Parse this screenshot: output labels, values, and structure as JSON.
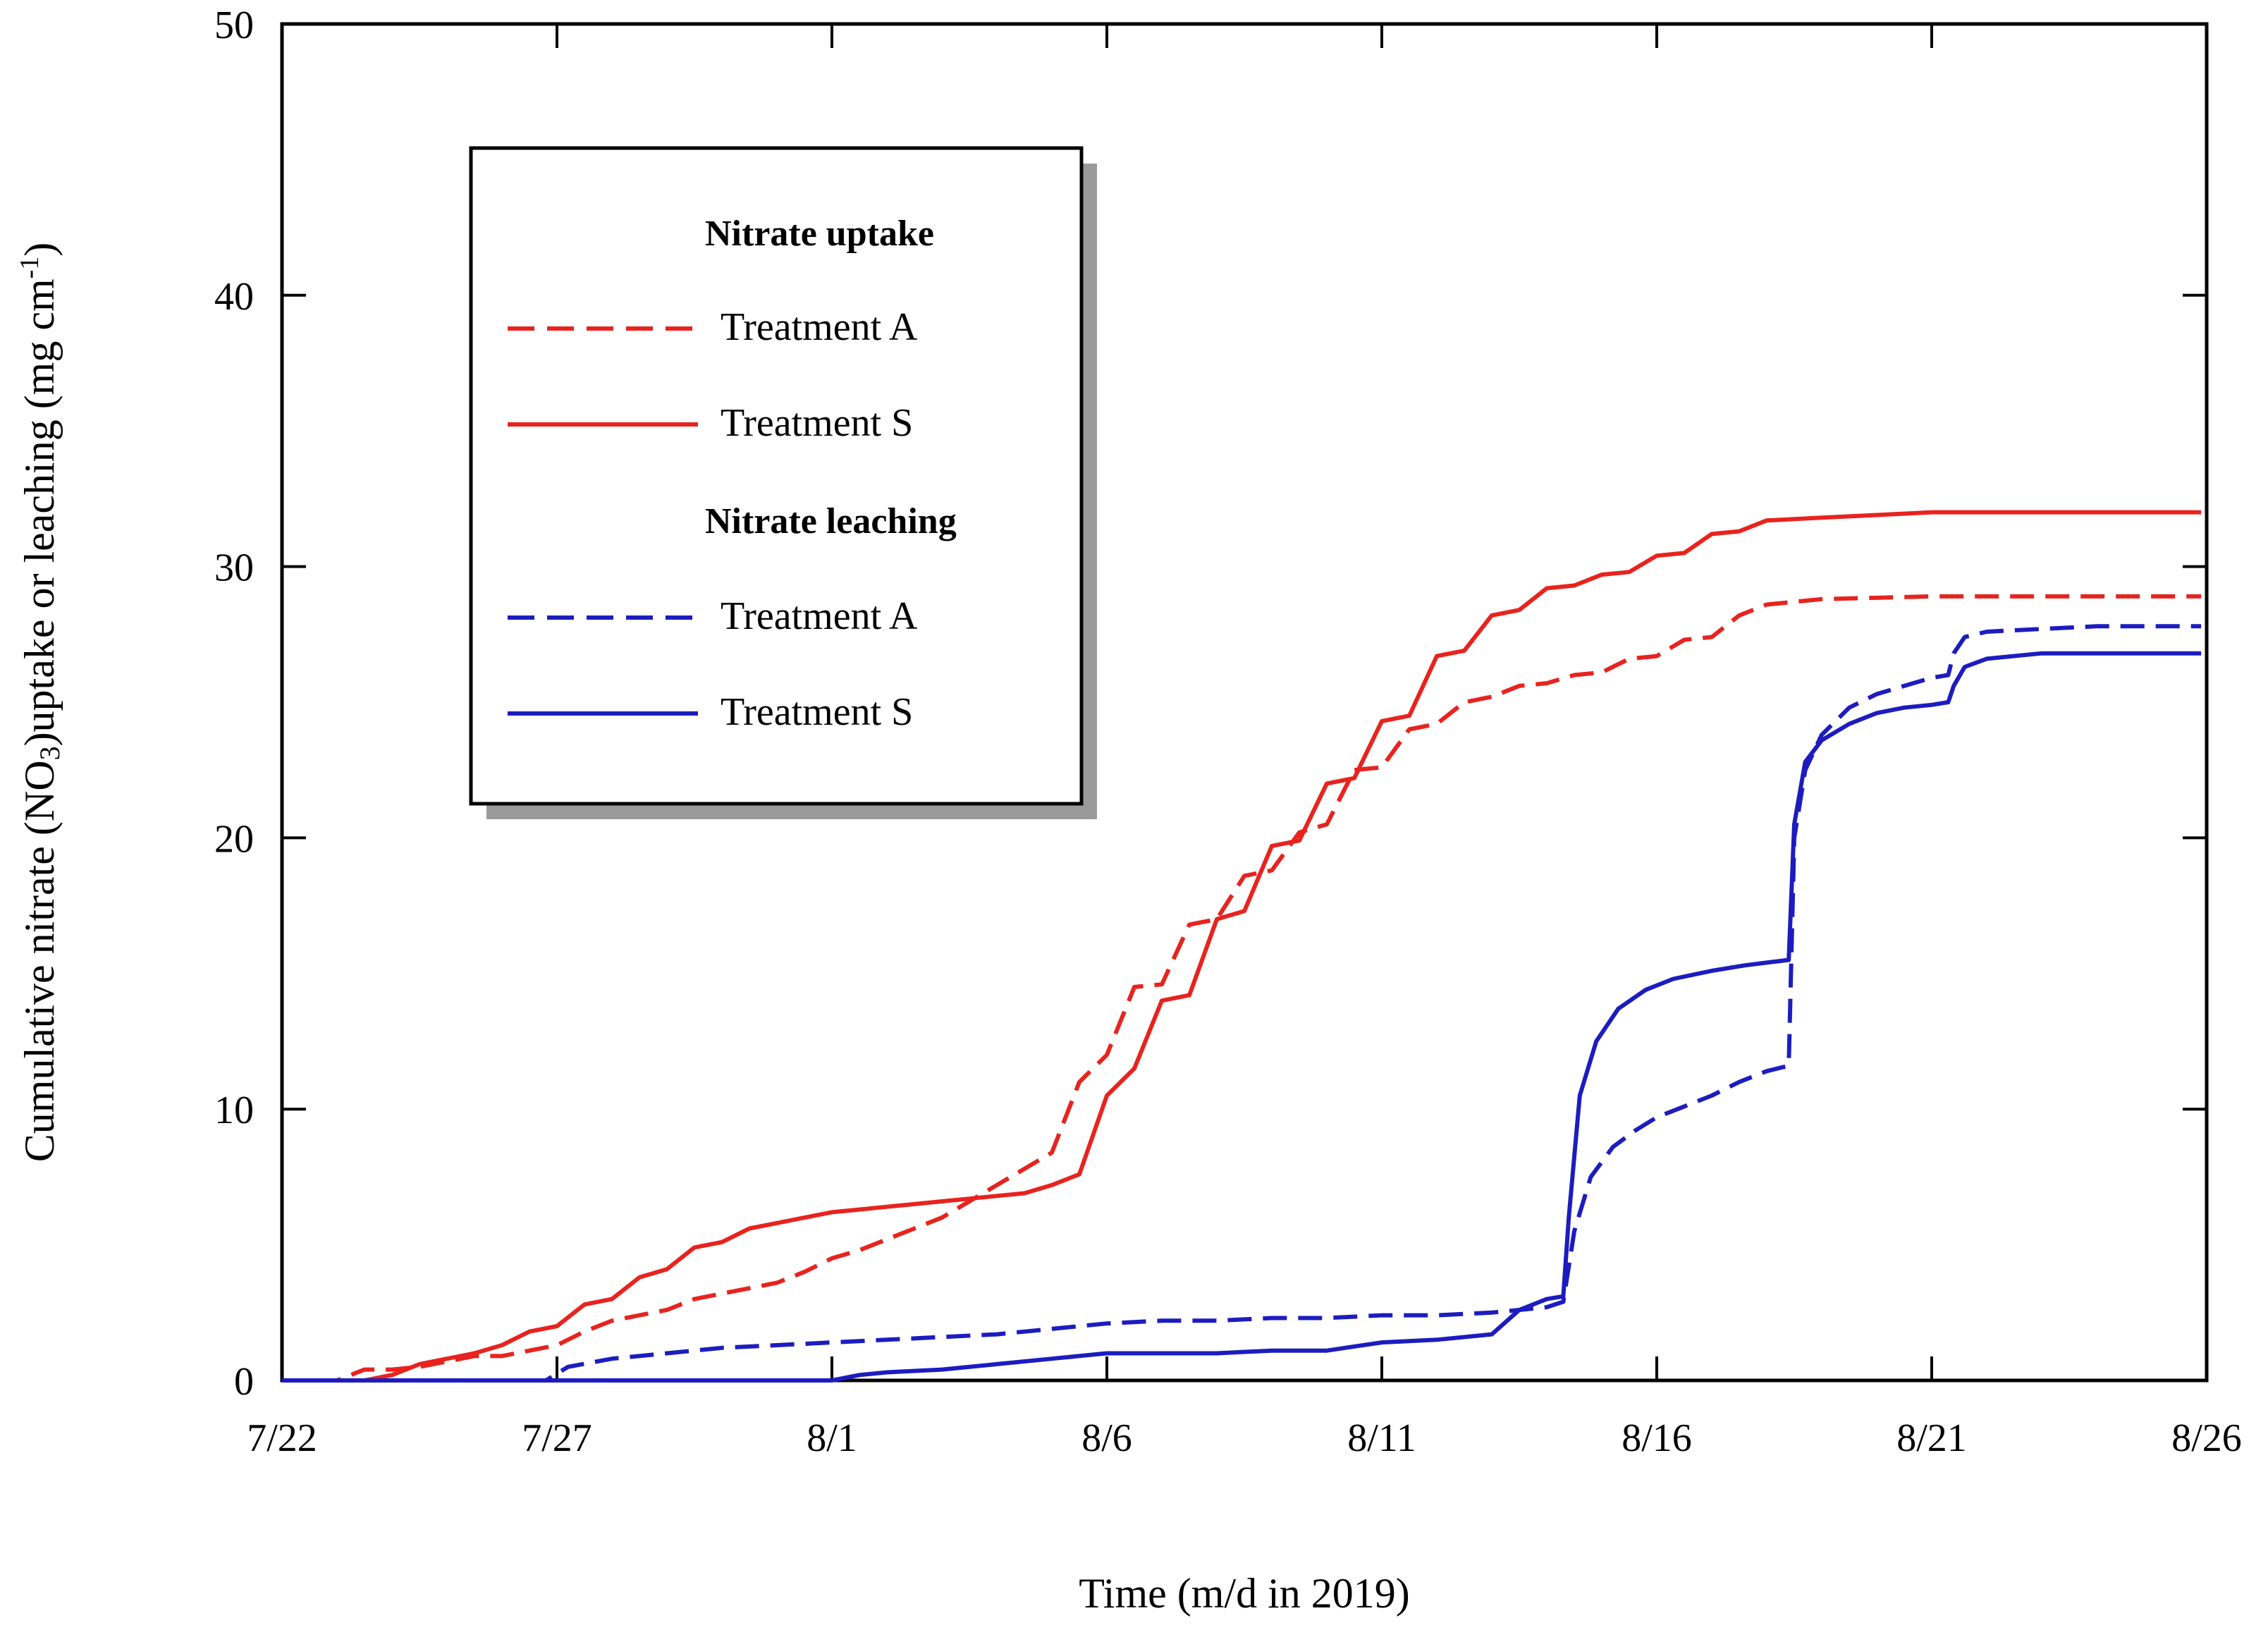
{
  "chart_data": {
    "type": "line",
    "title": "",
    "xlabel": "Time (m/d in 2019)",
    "ylabel_main": "Cumulative nitrate (NO",
    "ylabel_sub": "3",
    "ylabel_rest": ")uptake or leaching  (mg cm",
    "ylabel_sup": "-1",
    "ylabel_close": ")",
    "x_unit": "days since 7/22/2019",
    "xlim": [
      0,
      35
    ],
    "ylim": [
      0,
      50
    ],
    "x_ticks": [
      {
        "value": 0,
        "label": "7/22"
      },
      {
        "value": 5,
        "label": "7/27"
      },
      {
        "value": 10,
        "label": "8/1"
      },
      {
        "value": 15,
        "label": "8/6"
      },
      {
        "value": 20,
        "label": "8/11"
      },
      {
        "value": 25,
        "label": "8/16"
      },
      {
        "value": 30,
        "label": "8/21"
      },
      {
        "value": 35,
        "label": "8/26"
      }
    ],
    "y_ticks": [
      {
        "value": 0,
        "label": "0"
      },
      {
        "value": 10,
        "label": "10"
      },
      {
        "value": 20,
        "label": "20"
      },
      {
        "value": 30,
        "label": "30"
      },
      {
        "value": 40,
        "label": "40"
      },
      {
        "value": 50,
        "label": "50"
      }
    ],
    "legend": {
      "uptake_heading": "Nitrate uptake",
      "leaching_heading": "Nitrate leaching",
      "placement": "upper-left inside plot"
    },
    "series": [
      {
        "name": "Treatment A",
        "group": "Nitrate uptake",
        "color": "#e8231e",
        "dash": true,
        "x": [
          0,
          1,
          1.5,
          2,
          2.5,
          3,
          3.5,
          4,
          4.5,
          5,
          5.5,
          6,
          6.5,
          7,
          7.5,
          8,
          8.5,
          9,
          9.5,
          10,
          10.5,
          11,
          11.5,
          12,
          12.5,
          13,
          13.5,
          14,
          14.5,
          15,
          15.5,
          16,
          16.5,
          17,
          17.5,
          18,
          18.5,
          19,
          19.5,
          20,
          20.5,
          21,
          21.5,
          22,
          22.5,
          23,
          23.5,
          24,
          24.5,
          25,
          25.5,
          26,
          26.5,
          27,
          28,
          29,
          30,
          31,
          32,
          33,
          34,
          34.9
        ],
        "y": [
          0,
          0,
          0.4,
          0.4,
          0.5,
          0.7,
          0.9,
          0.9,
          1.1,
          1.3,
          1.8,
          2.2,
          2.4,
          2.6,
          3.0,
          3.2,
          3.4,
          3.6,
          4.0,
          4.5,
          4.8,
          5.2,
          5.6,
          6.0,
          6.6,
          7.2,
          7.8,
          8.4,
          11.0,
          12.0,
          14.5,
          14.6,
          16.8,
          17.0,
          18.6,
          18.8,
          20.2,
          20.5,
          22.5,
          22.6,
          24.0,
          24.2,
          25.0,
          25.2,
          25.6,
          25.7,
          26.0,
          26.1,
          26.6,
          26.7,
          27.3,
          27.4,
          28.2,
          28.6,
          28.8,
          28.85,
          28.9,
          28.9,
          28.9,
          28.9,
          28.9,
          28.9
        ]
      },
      {
        "name": "Treatment S",
        "group": "Nitrate uptake",
        "color": "#e8231e",
        "dash": false,
        "x": [
          0,
          1.5,
          2,
          2.5,
          3,
          3.5,
          4,
          4.5,
          5,
          5.5,
          6,
          6.5,
          7,
          7.5,
          8,
          8.5,
          9,
          9.5,
          10,
          10.5,
          11,
          11.5,
          12,
          12.5,
          13,
          13.5,
          14,
          14.5,
          15,
          15.5,
          16,
          16.5,
          17,
          17.5,
          18,
          18.5,
          19,
          19.5,
          20,
          20.5,
          21,
          21.5,
          22,
          22.5,
          23,
          23.5,
          24,
          24.5,
          25,
          25.5,
          26,
          26.5,
          27,
          28,
          29,
          30,
          31,
          32,
          33,
          34,
          34.9
        ],
        "y": [
          0,
          0,
          0.2,
          0.6,
          0.8,
          1.0,
          1.3,
          1.8,
          2.0,
          2.8,
          3.0,
          3.8,
          4.1,
          4.9,
          5.1,
          5.6,
          5.8,
          6.0,
          6.2,
          6.3,
          6.4,
          6.5,
          6.6,
          6.7,
          6.8,
          6.9,
          7.2,
          7.6,
          10.5,
          11.5,
          14.0,
          14.2,
          17.0,
          17.3,
          19.7,
          19.9,
          22.0,
          22.2,
          24.3,
          24.5,
          26.7,
          26.9,
          28.2,
          28.4,
          29.2,
          29.3,
          29.7,
          29.8,
          30.4,
          30.5,
          31.2,
          31.3,
          31.7,
          31.8,
          31.9,
          32.0,
          32.0,
          32.0,
          32.0,
          32.0,
          32.0
        ]
      },
      {
        "name": "Treatment A",
        "group": "Nitrate leaching",
        "color": "#1c1cc0",
        "dash": true,
        "x": [
          0,
          4.8,
          5.2,
          6,
          7,
          8,
          9,
          10,
          11,
          12,
          13,
          14,
          15,
          16,
          17,
          18,
          19,
          20,
          21,
          22,
          23,
          23.3,
          23.5,
          23.8,
          24.2,
          24.6,
          25,
          25.5,
          26,
          26.5,
          27,
          27.4,
          27.5,
          27.7,
          28,
          28.5,
          29,
          29.5,
          30,
          30.3,
          30.4,
          30.6,
          31,
          32,
          33,
          34,
          34.9
        ],
        "y": [
          0,
          0,
          0.5,
          0.8,
          1.0,
          1.2,
          1.3,
          1.4,
          1.5,
          1.6,
          1.7,
          1.9,
          2.1,
          2.2,
          2.2,
          2.3,
          2.3,
          2.4,
          2.4,
          2.5,
          2.7,
          2.9,
          5.5,
          7.5,
          8.6,
          9.2,
          9.7,
          10.1,
          10.5,
          11.0,
          11.4,
          11.6,
          20.0,
          22.5,
          23.8,
          24.8,
          25.3,
          25.6,
          25.9,
          26.0,
          26.8,
          27.4,
          27.6,
          27.7,
          27.8,
          27.8,
          27.8
        ]
      },
      {
        "name": "Treatment S",
        "group": "Nitrate leaching",
        "color": "#1c1cc0",
        "dash": false,
        "x": [
          0,
          10,
          10.5,
          11,
          12,
          13,
          14,
          15,
          16,
          17,
          18,
          19,
          20,
          21,
          22,
          22.5,
          23,
          23.3,
          23.4,
          23.6,
          23.9,
          24.3,
          24.8,
          25.3,
          26,
          26.6,
          27,
          27.4,
          27.5,
          27.7,
          28,
          28.5,
          29,
          29.5,
          30,
          30.3,
          30.4,
          30.6,
          31,
          32,
          33,
          34,
          34.9
        ],
        "y": [
          0,
          0,
          0.2,
          0.3,
          0.4,
          0.6,
          0.8,
          1.0,
          1.0,
          1.0,
          1.1,
          1.1,
          1.4,
          1.5,
          1.7,
          2.6,
          3.0,
          3.1,
          6.0,
          10.5,
          12.5,
          13.7,
          14.4,
          14.8,
          15.1,
          15.3,
          15.4,
          15.5,
          20.5,
          22.8,
          23.6,
          24.2,
          24.6,
          24.8,
          24.9,
          25.0,
          25.6,
          26.3,
          26.6,
          26.8,
          26.8,
          26.8,
          26.8
        ]
      }
    ]
  }
}
